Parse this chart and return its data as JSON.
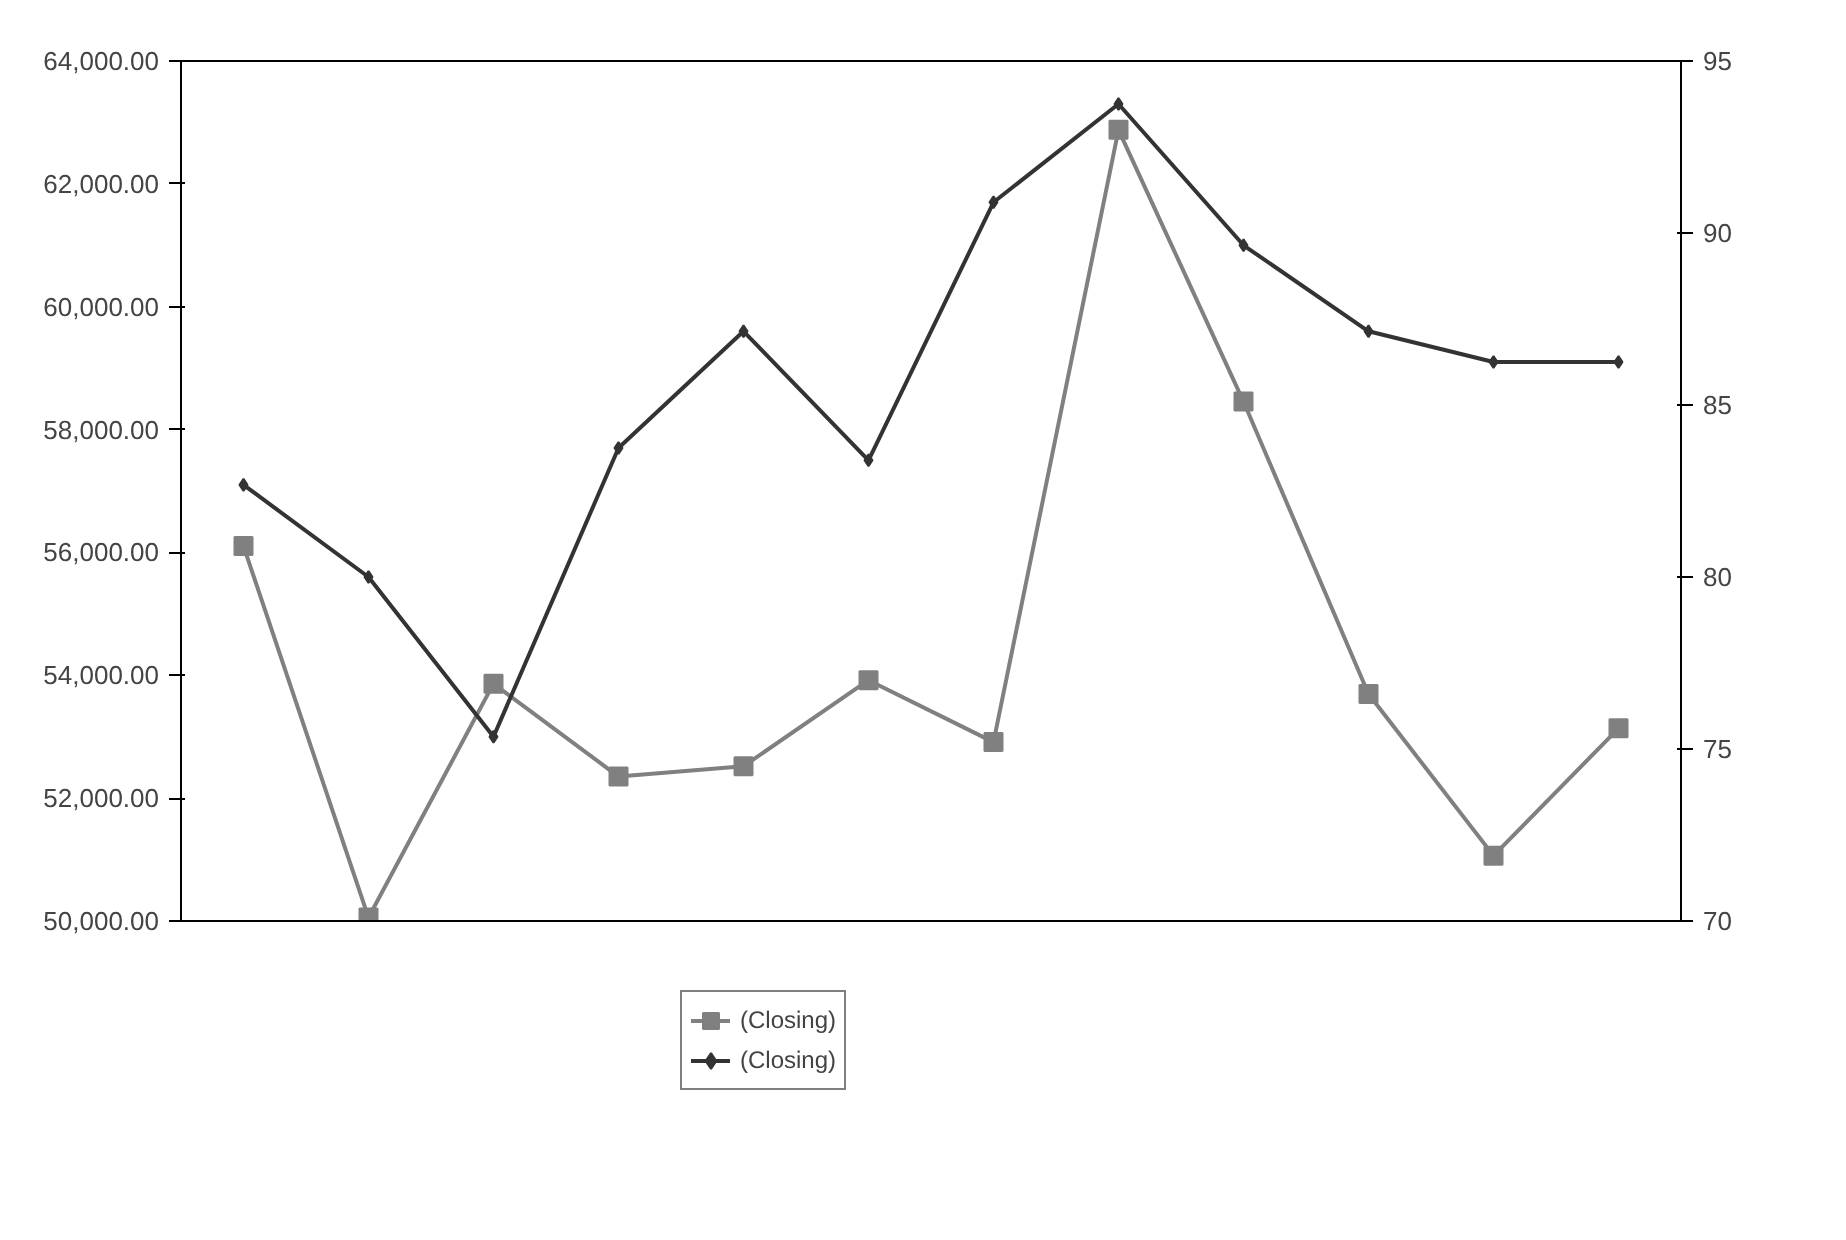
{
  "chart_data": {
    "type": "line",
    "categories": [
      null,
      null,
      null,
      null,
      null,
      null,
      null,
      null,
      null,
      null,
      null,
      null
    ],
    "series": [
      {
        "name": "(Closing)",
        "color": "#808080",
        "marker": "square",
        "axis": "y2",
        "values": [
          80.9,
          70.1,
          76.9,
          74.2,
          74.5,
          77.0,
          75.2,
          93.0,
          85.1,
          76.6,
          71.9,
          75.6
        ]
      },
      {
        "name": "(Closing)",
        "color": "#333333",
        "marker": "diamond",
        "values": [
          57100,
          55600,
          53000,
          57700,
          59600,
          57500,
          61700,
          63300,
          61000,
          59600,
          59100,
          59100
        ]
      }
    ],
    "ylim": [
      50000,
      64000
    ],
    "yticks": [
      {
        "value": 50000,
        "label": "50,000.00"
      },
      {
        "value": 52000,
        "label": "52,000.00"
      },
      {
        "value": 54000,
        "label": "54,000.00"
      },
      {
        "value": 56000,
        "label": "56,000.00"
      },
      {
        "value": 58000,
        "label": "58,000.00"
      },
      {
        "value": 60000,
        "label": "60,000.00"
      },
      {
        "value": 62000,
        "label": "62,000.00"
      },
      {
        "value": 64000,
        "label": "64,000.00"
      }
    ],
    "y2lim": [
      70,
      95
    ],
    "y2ticks": [
      70,
      75,
      80,
      85,
      90,
      95
    ],
    "tick_labels": "y",
    "grid": false,
    "legend": "bottom"
  }
}
